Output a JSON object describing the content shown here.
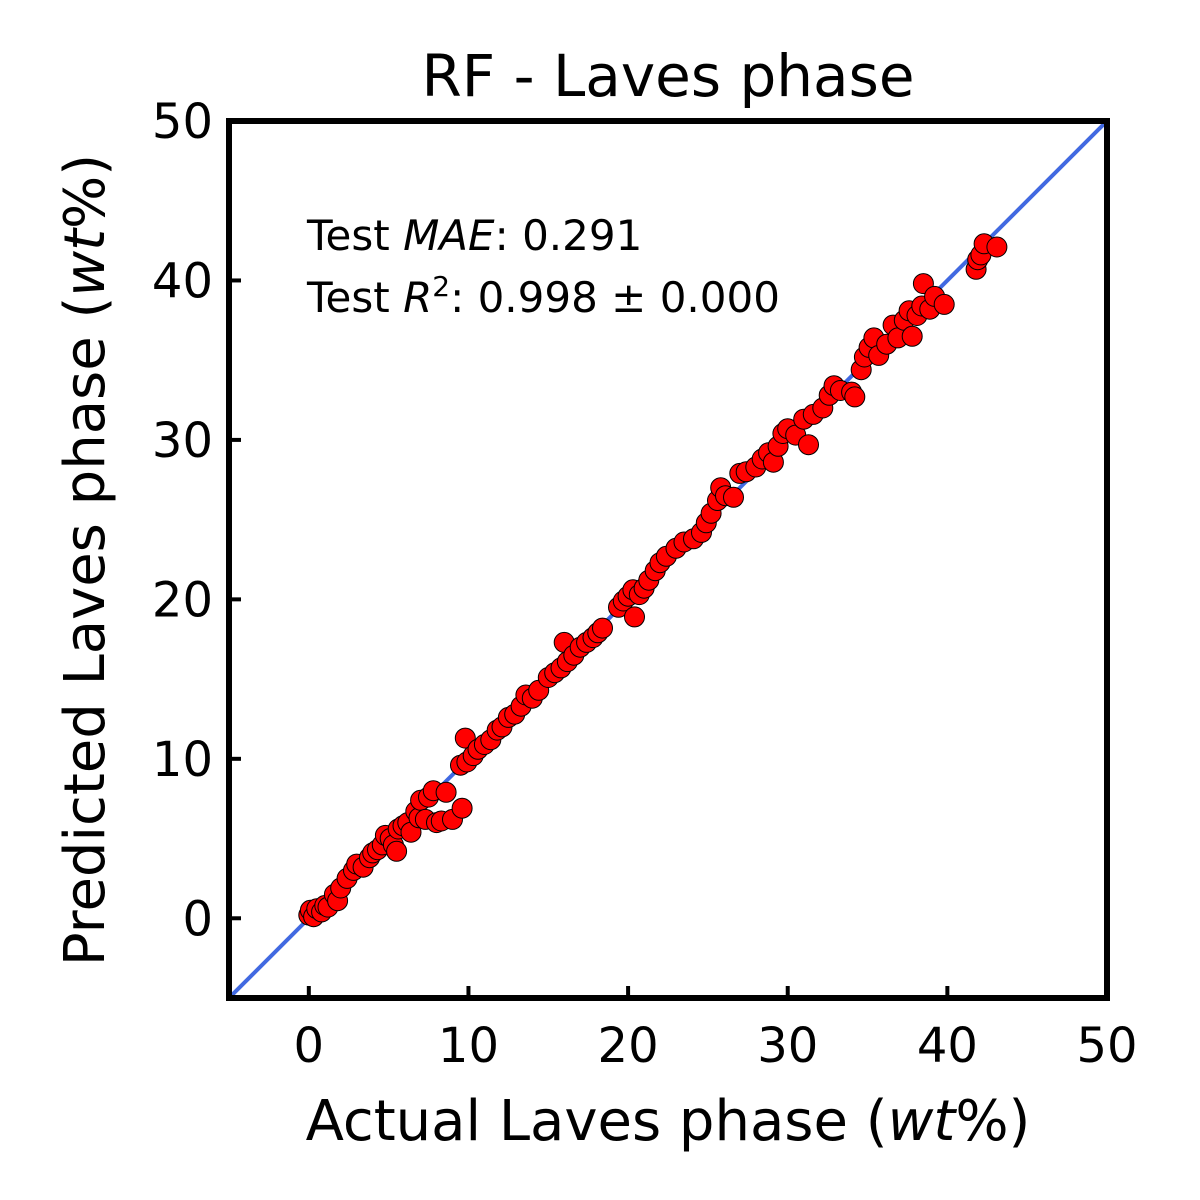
{
  "chart_data": {
    "type": "scatter",
    "title": "RF - Laves phase",
    "xlabel": {
      "prefix": "Actual Laves phase (",
      "italic": "wt",
      "suffix": "%)"
    },
    "ylabel": {
      "prefix": "Predicted Laves phase (",
      "italic": "wt",
      "suffix": "%)"
    },
    "xlim": [
      -5,
      50
    ],
    "ylim": [
      -5,
      50
    ],
    "xticks": [
      0,
      10,
      20,
      30,
      40,
      50
    ],
    "yticks": [
      0,
      10,
      20,
      30,
      40,
      50
    ],
    "grid": false,
    "colors": {
      "points": "#ff0000",
      "point_edge": "#000000",
      "identity_line": "#4169e1",
      "axes": "#000000"
    },
    "annotation": {
      "mae_prefix": "Test ",
      "mae_italic": "MAE",
      "mae_suffix": ": 0.291",
      "r2_prefix": "Test ",
      "r2_italic": "R",
      "r2_sup": "2",
      "r2_suffix": ": 0.998 ± 0.000"
    },
    "identity_line": [
      [
        -5,
        -5
      ],
      [
        50,
        50
      ]
    ],
    "series": [
      {
        "points": [
          [
            0,
            0.2
          ],
          [
            0.1,
            0.5
          ],
          [
            0.3,
            0.1
          ],
          [
            0.5,
            0.6
          ],
          [
            0.8,
            0.4
          ],
          [
            1.0,
            0.8
          ],
          [
            1.2,
            0.7
          ],
          [
            1.6,
            1.5
          ],
          [
            1.8,
            1.1
          ],
          [
            2.0,
            1.9
          ],
          [
            2.4,
            2.5
          ],
          [
            2.8,
            3.0
          ],
          [
            3.0,
            3.4
          ],
          [
            3.4,
            3.2
          ],
          [
            3.8,
            3.8
          ],
          [
            4.0,
            4.1
          ],
          [
            4.3,
            4.3
          ],
          [
            4.6,
            4.6
          ],
          [
            4.8,
            5.2
          ],
          [
            5.1,
            5.0
          ],
          [
            5.3,
            4.6
          ],
          [
            5.5,
            4.2
          ],
          [
            5.6,
            5.6
          ],
          [
            5.9,
            5.8
          ],
          [
            6.2,
            6.0
          ],
          [
            6.4,
            5.4
          ],
          [
            6.7,
            6.7
          ],
          [
            6.9,
            6.3
          ],
          [
            7.0,
            7.4
          ],
          [
            7.3,
            6.2
          ],
          [
            7.5,
            7.6
          ],
          [
            7.8,
            8.0
          ],
          [
            8.0,
            6.0
          ],
          [
            8.3,
            6.1
          ],
          [
            8.6,
            7.9
          ],
          [
            9.0,
            6.2
          ],
          [
            9.5,
            9.6
          ],
          [
            9.6,
            6.9
          ],
          [
            9.9,
            9.8
          ],
          [
            9.8,
            11.3
          ],
          [
            10.3,
            10.2
          ],
          [
            10.6,
            10.6
          ],
          [
            11.0,
            10.9
          ],
          [
            11.4,
            11.2
          ],
          [
            11.8,
            11.8
          ],
          [
            12.1,
            12.0
          ],
          [
            12.5,
            12.6
          ],
          [
            12.9,
            12.8
          ],
          [
            13.3,
            13.3
          ],
          [
            13.6,
            14.0
          ],
          [
            14.0,
            13.8
          ],
          [
            14.4,
            14.3
          ],
          [
            15.0,
            15.1
          ],
          [
            15.4,
            15.4
          ],
          [
            15.8,
            15.7
          ],
          [
            16.0,
            17.3
          ],
          [
            16.2,
            16.1
          ],
          [
            16.6,
            16.5
          ],
          [
            17.0,
            17.0
          ],
          [
            17.4,
            17.3
          ],
          [
            17.8,
            17.6
          ],
          [
            18.1,
            17.9
          ],
          [
            18.4,
            18.2
          ],
          [
            19.4,
            19.5
          ],
          [
            19.7,
            19.9
          ],
          [
            20.0,
            20.2
          ],
          [
            20.3,
            20.6
          ],
          [
            20.4,
            18.9
          ],
          [
            20.7,
            20.3
          ],
          [
            21.0,
            20.7
          ],
          [
            21.3,
            21.2
          ],
          [
            21.7,
            21.8
          ],
          [
            22.0,
            22.3
          ],
          [
            22.4,
            22.7
          ],
          [
            23.0,
            23.2
          ],
          [
            23.5,
            23.6
          ],
          [
            24.1,
            23.8
          ],
          [
            24.6,
            24.2
          ],
          [
            24.9,
            24.8
          ],
          [
            25.2,
            25.4
          ],
          [
            25.6,
            26.2
          ],
          [
            25.8,
            27.0
          ],
          [
            26.1,
            26.5
          ],
          [
            26.6,
            26.4
          ],
          [
            27.0,
            27.9
          ],
          [
            27.4,
            28.0
          ],
          [
            28.0,
            28.3
          ],
          [
            28.4,
            28.8
          ],
          [
            28.8,
            29.2
          ],
          [
            29.1,
            28.6
          ],
          [
            29.4,
            29.6
          ],
          [
            29.7,
            30.4
          ],
          [
            30.0,
            30.7
          ],
          [
            30.5,
            30.3
          ],
          [
            31.0,
            31.3
          ],
          [
            31.3,
            29.7
          ],
          [
            31.6,
            31.6
          ],
          [
            32.2,
            32.0
          ],
          [
            32.6,
            32.8
          ],
          [
            32.9,
            33.4
          ],
          [
            33.3,
            33.1
          ],
          [
            34.0,
            33.0
          ],
          [
            34.2,
            32.7
          ],
          [
            34.6,
            34.4
          ],
          [
            34.8,
            35.2
          ],
          [
            35.1,
            35.8
          ],
          [
            35.4,
            36.4
          ],
          [
            35.7,
            35.3
          ],
          [
            36.2,
            36.0
          ],
          [
            36.6,
            37.2
          ],
          [
            36.9,
            36.4
          ],
          [
            37.3,
            37.5
          ],
          [
            37.6,
            38.1
          ],
          [
            37.8,
            36.5
          ],
          [
            38.1,
            37.8
          ],
          [
            38.4,
            38.4
          ],
          [
            38.5,
            39.8
          ],
          [
            38.9,
            38.2
          ],
          [
            39.2,
            39.0
          ],
          [
            39.8,
            38.5
          ],
          [
            41.8,
            40.7
          ],
          [
            41.9,
            41.3
          ],
          [
            42.1,
            41.6
          ],
          [
            42.3,
            42.3
          ],
          [
            43.1,
            42.1
          ]
        ]
      }
    ]
  }
}
